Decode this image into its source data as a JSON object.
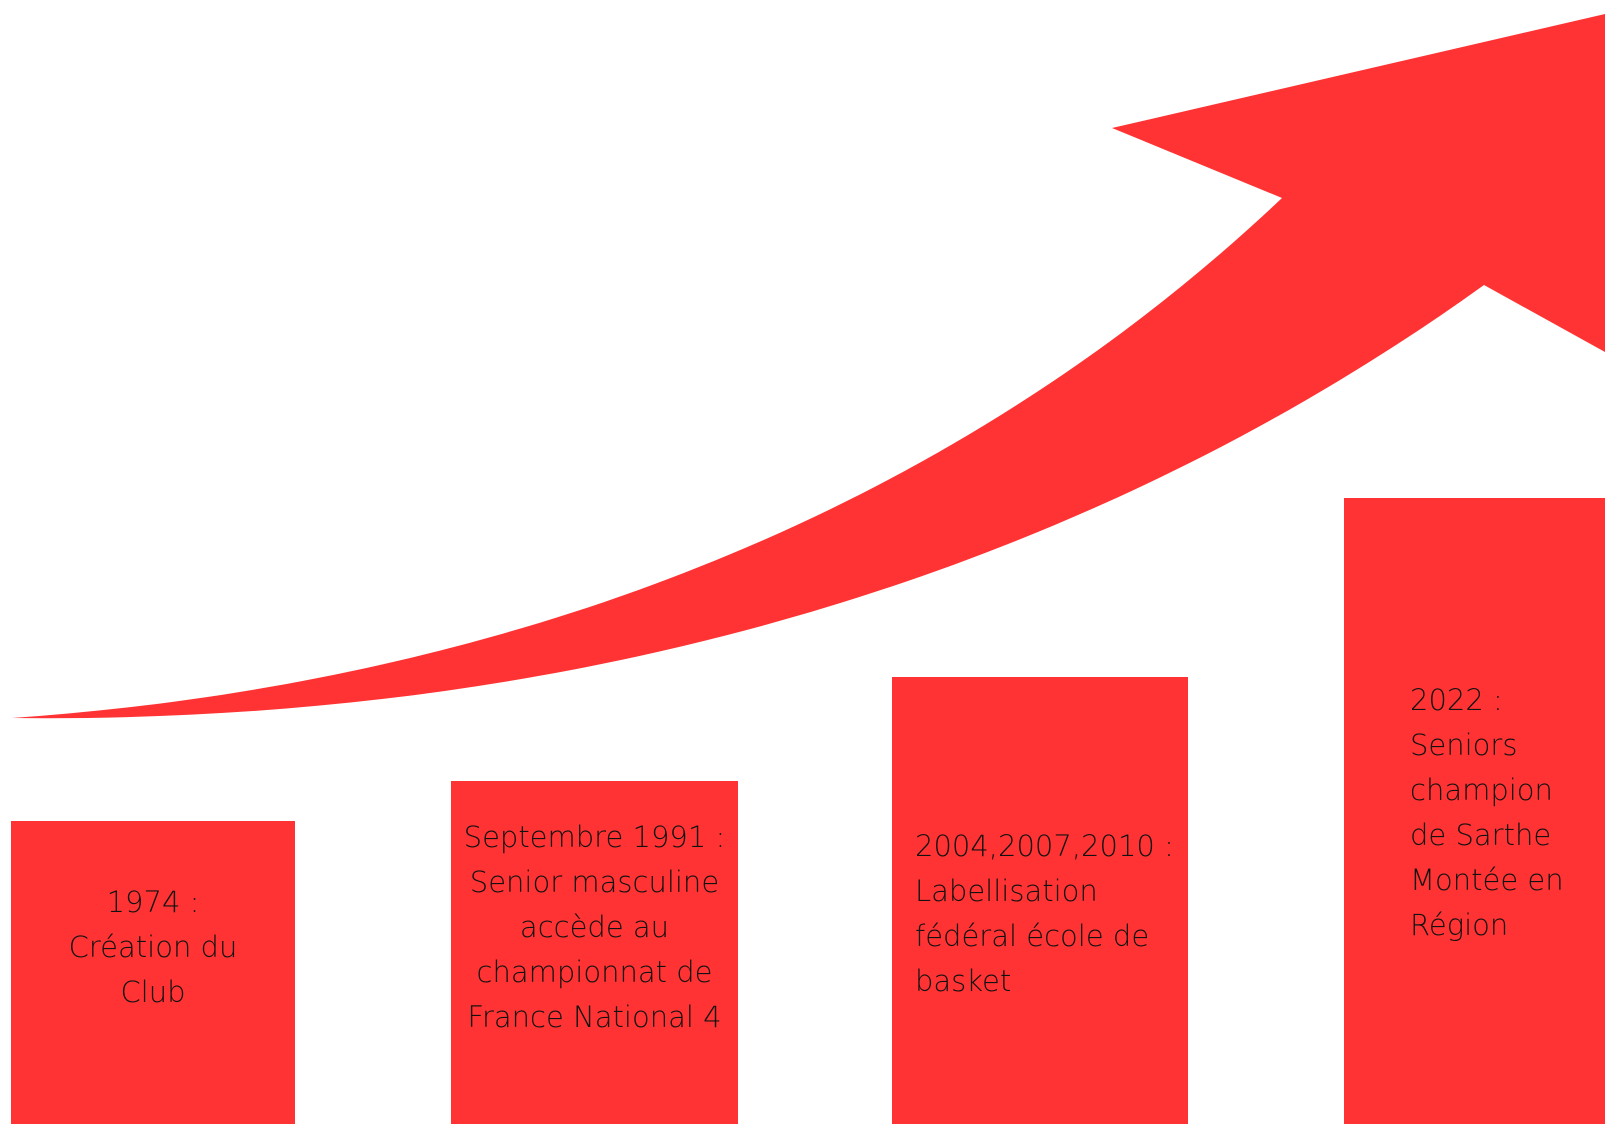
{
  "theme": {
    "accent": "#ff3333",
    "text": "#111111",
    "background": "#ffffff"
  },
  "timeline": {
    "arrow_icon": "trend-up-arrow",
    "steps": [
      {
        "label": "1974 :\nCréation du\nClub"
      },
      {
        "label": "Septembre 1991 :\nSenior masculine\naccède au\nchampionnat de\nFrance National 4"
      },
      {
        "label": "2004,2007,2010 :\nLabellisation\nfédéral école de\nbasket"
      },
      {
        "label": "2022 :\nSeniors\nchampion\nde Sarthe\nMontée en\nRégion"
      }
    ]
  }
}
